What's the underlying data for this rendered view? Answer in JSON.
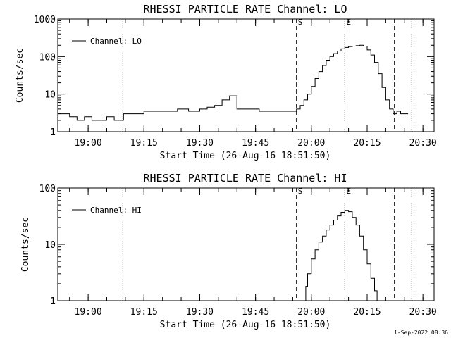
{
  "footer": {
    "timestamp": "1-Sep-2022 08:36"
  },
  "chart_data": [
    {
      "type": "line",
      "title": "RHESSI PARTICLE_RATE Channel: LO",
      "xlabel": "Start Time (26-Aug-16 18:51:50)",
      "ylabel": "Counts/sec",
      "yscale": "log",
      "xlim": [
        "18:51:50",
        "20:33:00"
      ],
      "ylim": [
        1,
        1000
      ],
      "x_ticks": [
        "19:00",
        "19:15",
        "19:30",
        "19:45",
        "20:00",
        "20:15",
        "20:30"
      ],
      "y_ticks": [
        "1",
        "10",
        "100",
        "1000"
      ],
      "legend": {
        "position": "top-left",
        "entries": [
          "Channel: LO"
        ]
      },
      "markers": [
        {
          "label": "S",
          "x": "19:56:00",
          "style": "dashed"
        },
        {
          "label": "E",
          "x": "20:09:00",
          "style": "dotted"
        }
      ],
      "vlines": [
        {
          "x": "19:09:20",
          "style": "dotted"
        },
        {
          "x": "20:22:20",
          "style": "dashed"
        },
        {
          "x": "20:27:00",
          "style": "dotted"
        }
      ],
      "series": [
        {
          "name": "Channel: LO",
          "x": [
            "18:51:50",
            "18:53:00",
            "18:55:00",
            "18:57:00",
            "18:59:00",
            "19:01:00",
            "19:03:00",
            "19:05:00",
            "19:07:00",
            "19:09:30",
            "19:12:00",
            "19:15:00",
            "19:18:00",
            "19:21:00",
            "19:24:00",
            "19:27:00",
            "19:30:00",
            "19:32:00",
            "19:34:00",
            "19:36:00",
            "19:38:00",
            "19:40:00",
            "19:43:00",
            "19:46:00",
            "19:49:00",
            "19:52:00",
            "19:55:00",
            "19:56:00",
            "19:57:00",
            "19:58:00",
            "19:59:00",
            "20:00:00",
            "20:01:00",
            "20:02:00",
            "20:03:00",
            "20:04:00",
            "20:05:00",
            "20:06:00",
            "20:07:00",
            "20:08:00",
            "20:09:00",
            "20:10:00",
            "20:11:00",
            "20:12:00",
            "20:13:00",
            "20:14:00",
            "20:15:00",
            "20:16:00",
            "20:17:00",
            "20:18:00",
            "20:19:00",
            "20:20:00",
            "20:21:00",
            "20:22:00",
            "20:23:00",
            "20:24:00",
            "20:25:00",
            "20:26:00"
          ],
          "y": [
            3,
            3,
            2.5,
            2,
            2.5,
            2,
            2,
            2.5,
            2,
            3,
            3,
            3.5,
            3.5,
            3.5,
            4,
            3.5,
            4,
            4.5,
            5,
            7,
            9,
            4,
            4,
            3.5,
            3.5,
            3.5,
            3.5,
            4,
            5,
            7,
            10,
            16,
            26,
            40,
            58,
            80,
            100,
            120,
            140,
            160,
            175,
            185,
            190,
            195,
            200,
            190,
            150,
            110,
            70,
            35,
            15,
            7,
            4,
            3,
            3.5,
            3,
            3,
            3
          ]
        }
      ]
    },
    {
      "type": "line",
      "title": "RHESSI PARTICLE_RATE Channel: HI",
      "xlabel": "Start Time (26-Aug-16 18:51:50)",
      "ylabel": "Counts/sec",
      "yscale": "log",
      "xlim": [
        "18:51:50",
        "20:33:00"
      ],
      "ylim": [
        1,
        100
      ],
      "x_ticks": [
        "19:00",
        "19:15",
        "19:30",
        "19:45",
        "20:00",
        "20:15",
        "20:30"
      ],
      "y_ticks": [
        "1",
        "10",
        "100"
      ],
      "legend": {
        "position": "top-left",
        "entries": [
          "Channel: HI"
        ]
      },
      "markers": [
        {
          "label": "S",
          "x": "19:56:00",
          "style": "dashed"
        },
        {
          "label": "E",
          "x": "20:09:00",
          "style": "dotted"
        }
      ],
      "vlines": [
        {
          "x": "19:09:20",
          "style": "dotted"
        },
        {
          "x": "20:22:20",
          "style": "dashed"
        },
        {
          "x": "20:27:00",
          "style": "dotted"
        }
      ],
      "series": [
        {
          "name": "Channel: HI",
          "x": [
            "19:58:00",
            "19:58:30",
            "19:59:00",
            "20:00:00",
            "20:01:00",
            "20:02:00",
            "20:03:00",
            "20:04:00",
            "20:05:00",
            "20:06:00",
            "20:07:00",
            "20:08:00",
            "20:09:00",
            "20:10:00",
            "20:11:00",
            "20:12:00",
            "20:13:00",
            "20:14:00",
            "20:15:00",
            "20:16:00",
            "20:17:00",
            "20:17:40"
          ],
          "y": [
            1,
            1.8,
            3,
            5.5,
            8,
            11,
            14,
            18,
            22,
            27,
            32,
            37,
            40,
            38,
            30,
            22,
            14,
            8,
            4.5,
            2.5,
            1.5,
            1
          ]
        }
      ]
    }
  ]
}
